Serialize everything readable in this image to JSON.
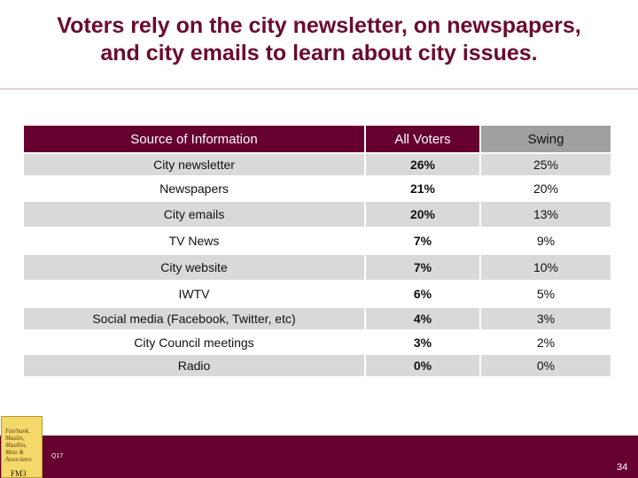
{
  "slide": {
    "title_line1": "Voters rely on the city newsletter, on newspapers,",
    "title_line2": "and city emails to learn about city issues."
  },
  "table": {
    "headers": [
      "Source of Information",
      "All  Voters",
      "Swing"
    ],
    "rows": [
      {
        "source": "City newsletter",
        "all": "26%",
        "swing": "25%"
      },
      {
        "source": "Newspapers",
        "all": "21%",
        "swing": "20%"
      },
      {
        "source": "City emails",
        "all": "20%",
        "swing": "13%"
      },
      {
        "source": "TV News",
        "all": "7%",
        "swing": "9%"
      },
      {
        "source": "City website",
        "all": "7%",
        "swing": "10%"
      },
      {
        "source": "IWTV",
        "all": "6%",
        "swing": "5%"
      },
      {
        "source": "Social media (Facebook, Twitter, etc)",
        "all": "4%",
        "swing": "3%"
      },
      {
        "source": "City Council meetings",
        "all": "3%",
        "swing": "2%"
      },
      {
        "source": "Radio",
        "all": "0%",
        "swing": "0%"
      }
    ]
  },
  "footer": {
    "question_ref": "Q17",
    "page_number": "34",
    "logo_text": [
      "Fairbank,",
      "Maslin,",
      "Maullin,",
      "Metz &",
      "Associates"
    ],
    "logo_mark": "FM3"
  },
  "colors": {
    "brand": "#65002f",
    "shaded_row": "#d9d9d9",
    "swing_header": "#a0a0a0"
  }
}
